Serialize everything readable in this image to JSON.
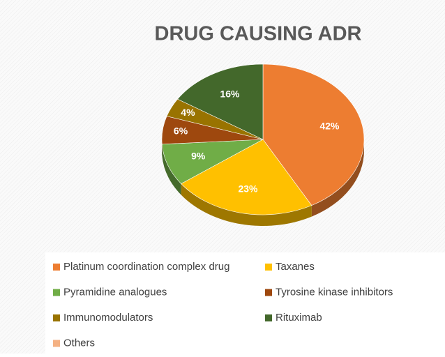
{
  "chart_data": {
    "type": "pie",
    "title": "DRUG CAUSING ADR",
    "categories": [
      "Platinum coordination complex drug",
      "Taxanes",
      "Pyramidine analogues",
      "Tyrosine kinase inhibitors",
      "Immunomodulators",
      "Rituximab",
      "Others"
    ],
    "values": [
      42,
      23,
      9,
      6,
      4,
      16,
      0
    ],
    "value_labels": [
      "42%",
      "23%",
      "9%",
      "6%",
      "4%",
      "16%",
      null
    ],
    "colors": [
      "#ED7D31",
      "#FFC000",
      "#70AD47",
      "#9E480E",
      "#997300",
      "#43682B",
      "#F4B183"
    ]
  }
}
